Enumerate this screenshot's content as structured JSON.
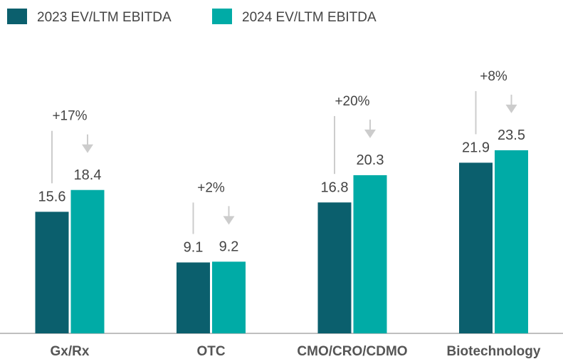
{
  "chart_data": {
    "type": "bar",
    "categories": [
      "Gx/Rx",
      "OTC",
      "CMO/CRO/CDMO",
      "Biotechnology"
    ],
    "series": [
      {
        "name": "2023 EV/LTM EBITDA",
        "color": "#0b5f6d",
        "values": [
          15.6,
          9.1,
          16.8,
          21.9
        ]
      },
      {
        "name": "2024 EV/LTM EBITDA",
        "color": "#00aba6",
        "values": [
          18.4,
          9.2,
          20.3,
          23.5
        ]
      }
    ],
    "annotations": [
      "+17%",
      "+2%",
      "+20%",
      "+8%"
    ]
  }
}
